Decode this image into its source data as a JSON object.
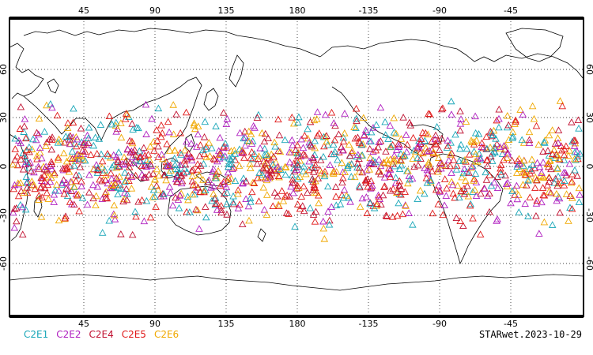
{
  "chart_data": {
    "type": "scatter",
    "projection": "cylindrical, centered 180",
    "marker": "open triangle",
    "lon_ticks": [
      "45",
      "90",
      "135",
      "180",
      "-135",
      "-90",
      "-45"
    ],
    "lat_ticks": [
      "60",
      "30",
      "0",
      "-30",
      "-60"
    ],
    "grid": true,
    "lat_range": [
      -90,
      90
    ],
    "obs_lat_band": [
      -45,
      45
    ],
    "series": [
      {
        "name": "C2E1",
        "color": "#18a6b8"
      },
      {
        "name": "C2E2",
        "color": "#b020c0"
      },
      {
        "name": "C2E4",
        "color": "#c01030"
      },
      {
        "name": "C2E5",
        "color": "#e01818"
      },
      {
        "name": "C2E6",
        "color": "#f0a800"
      }
    ]
  },
  "footer": {
    "label": "STARwet.2023-10-29"
  }
}
